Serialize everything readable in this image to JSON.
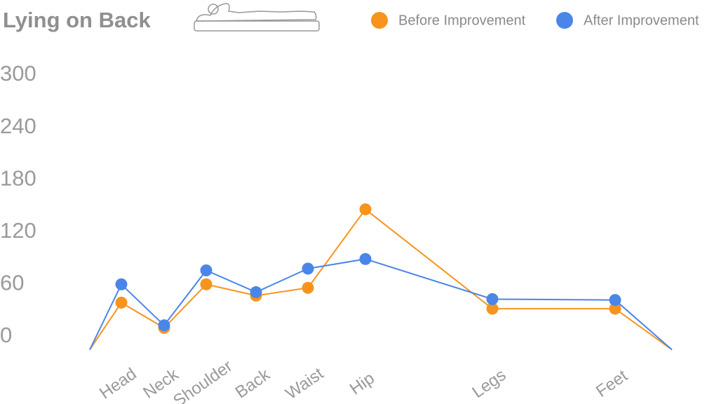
{
  "chart_data": {
    "type": "line",
    "title": "Lying on Back",
    "categories": [
      null,
      "Head",
      "Neck",
      "Shoulder",
      "Back",
      "Waist",
      "Hip",
      "Legs",
      "Feet",
      null
    ],
    "series": [
      {
        "name": "Before Improvement",
        "color": "#f7941d",
        "values": [
          -15,
          39,
          10,
          60,
          47,
          56,
          146,
          32,
          32,
          -15
        ]
      },
      {
        "name": "After Improvement",
        "color": "#4a86e8",
        "values": [
          -15,
          60,
          13,
          76,
          51,
          78,
          89,
          43,
          42,
          -15
        ]
      }
    ],
    "ylim": [
      -15,
      300
    ],
    "yticks": [
      0,
      60,
      120,
      180,
      240,
      300
    ],
    "grid": false
  }
}
